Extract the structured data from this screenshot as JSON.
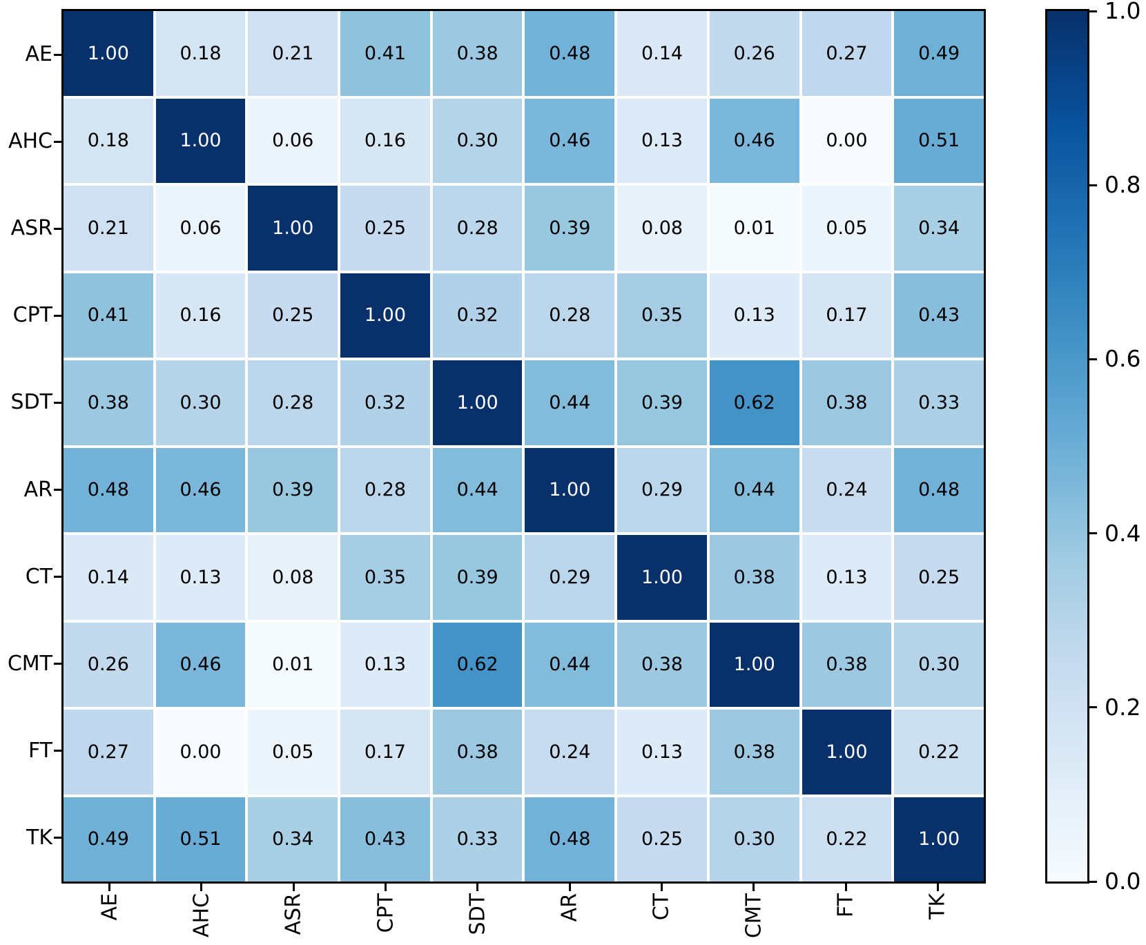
{
  "figure": {
    "background_color": "#ffffff",
    "border_color": "#000000",
    "grid_line_color": "#ffffff"
  },
  "chart_data": {
    "type": "heatmap",
    "title": "",
    "xlabel": "",
    "ylabel": "",
    "categories": [
      "AE",
      "AHC",
      "ASR",
      "CPT",
      "SDT",
      "AR",
      "CT",
      "CMT",
      "FT",
      "TK"
    ],
    "matrix": [
      [
        1.0,
        0.18,
        0.21,
        0.41,
        0.38,
        0.48,
        0.14,
        0.26,
        0.27,
        0.49
      ],
      [
        0.18,
        1.0,
        0.06,
        0.16,
        0.3,
        0.46,
        0.13,
        0.46,
        0.0,
        0.51
      ],
      [
        0.21,
        0.06,
        1.0,
        0.25,
        0.28,
        0.39,
        0.08,
        0.01,
        0.05,
        0.34
      ],
      [
        0.41,
        0.16,
        0.25,
        1.0,
        0.32,
        0.28,
        0.35,
        0.13,
        0.17,
        0.43
      ],
      [
        0.38,
        0.3,
        0.28,
        0.32,
        1.0,
        0.44,
        0.39,
        0.62,
        0.38,
        0.33
      ],
      [
        0.48,
        0.46,
        0.39,
        0.28,
        0.44,
        1.0,
        0.29,
        0.44,
        0.24,
        0.48
      ],
      [
        0.14,
        0.13,
        0.08,
        0.35,
        0.39,
        0.29,
        1.0,
        0.38,
        0.13,
        0.25
      ],
      [
        0.26,
        0.46,
        0.01,
        0.13,
        0.62,
        0.44,
        0.38,
        1.0,
        0.38,
        0.3
      ],
      [
        0.27,
        0.0,
        0.05,
        0.17,
        0.38,
        0.24,
        0.13,
        0.38,
        1.0,
        0.22
      ],
      [
        0.49,
        0.51,
        0.34,
        0.43,
        0.33,
        0.48,
        0.25,
        0.3,
        0.22,
        1.0
      ]
    ],
    "value_decimals": 2,
    "vmin": 0.0,
    "vmax": 1.0,
    "colormap_name": "Blues",
    "colormap_stops": [
      "#f7fbff",
      "#deebf7",
      "#c6dbef",
      "#9ecae1",
      "#6baed6",
      "#4292c6",
      "#2171b5",
      "#08519c",
      "#08306b"
    ],
    "annotation_dark_text_color": "#000000",
    "annotation_light_text_color": "#ffffff",
    "light_text_threshold": 0.8,
    "grid_on": true,
    "legend_position": "right-colorbar",
    "colorbar_ticks": [
      0.0,
      0.2,
      0.4,
      0.6,
      0.8,
      1.0
    ],
    "colorbar_tick_labels": [
      "0.0",
      "0.2",
      "0.4",
      "0.6",
      "0.8",
      "1.0"
    ]
  }
}
